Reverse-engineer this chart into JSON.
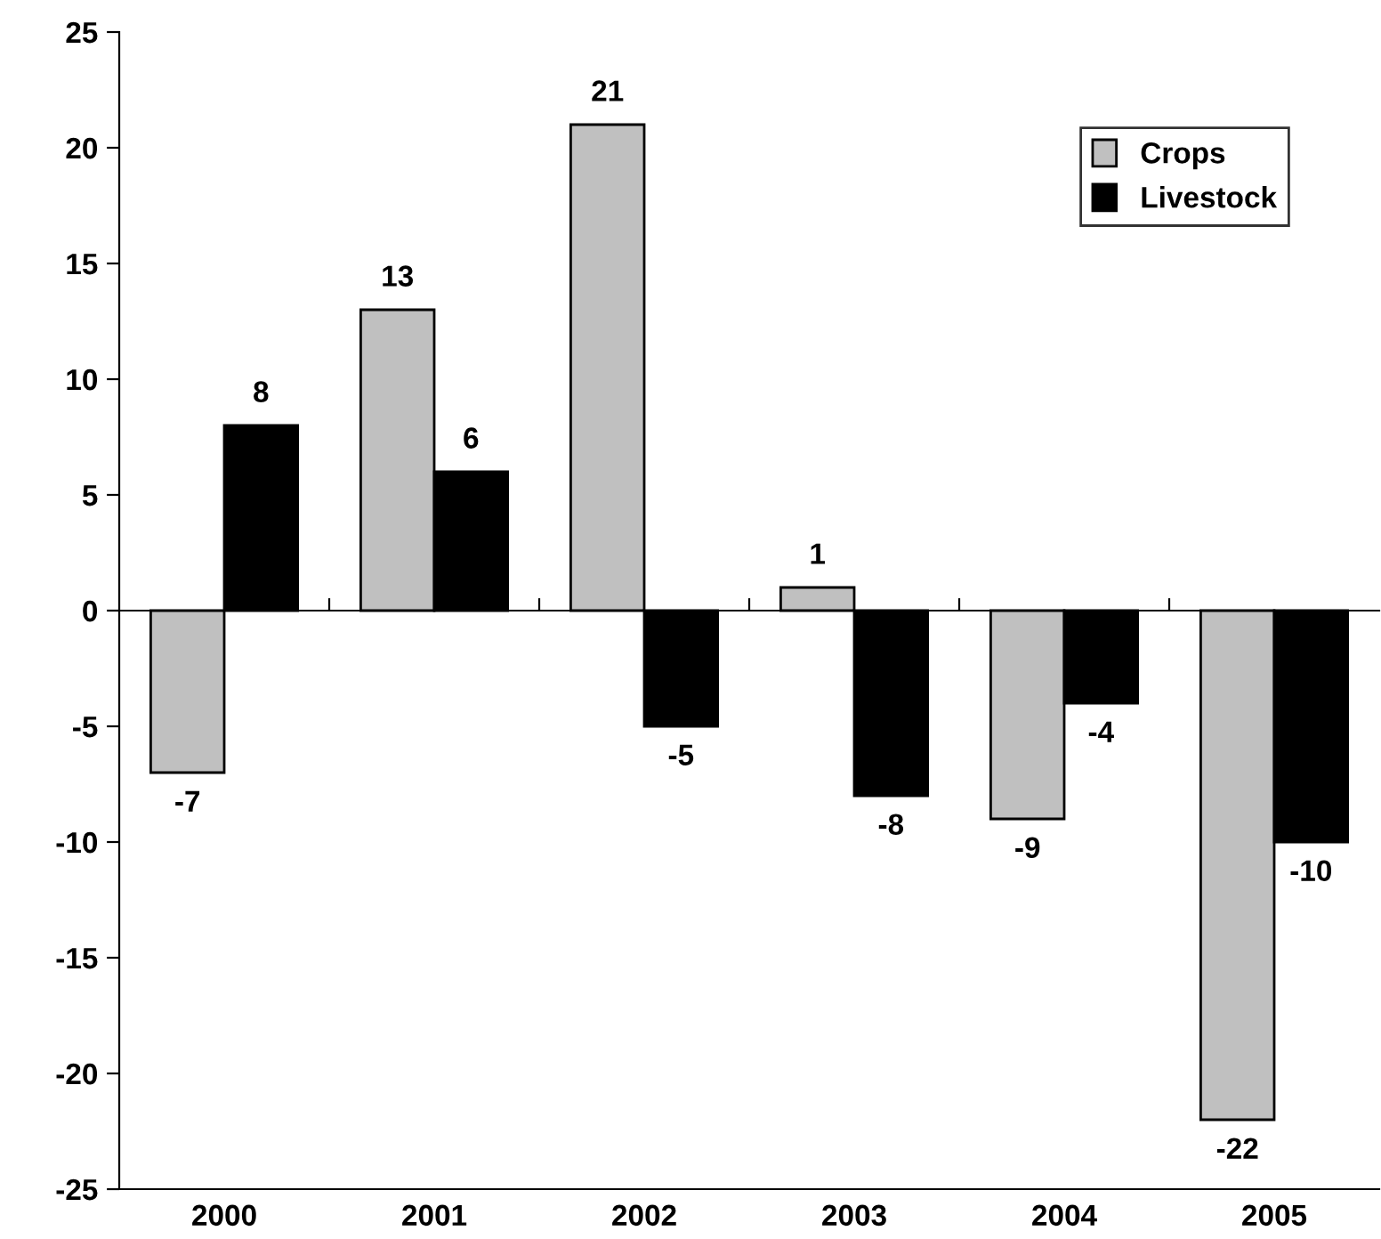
{
  "chart_data": {
    "type": "bar",
    "categories": [
      "2000",
      "2001",
      "2002",
      "2003",
      "2004",
      "2005"
    ],
    "series": [
      {
        "name": "Crops",
        "color": "#c0c0c0",
        "values": [
          -7,
          13,
          21,
          1,
          -9,
          -22
        ]
      },
      {
        "name": "Livestock",
        "color": "#000000",
        "values": [
          8,
          6,
          -5,
          -8,
          -4,
          -10
        ]
      }
    ],
    "ylim": [
      -25,
      25
    ],
    "yticks": [
      -25,
      -20,
      -15,
      -10,
      -5,
      0,
      5,
      10,
      15,
      20,
      25
    ],
    "legend": "top right",
    "data_labels": true
  }
}
